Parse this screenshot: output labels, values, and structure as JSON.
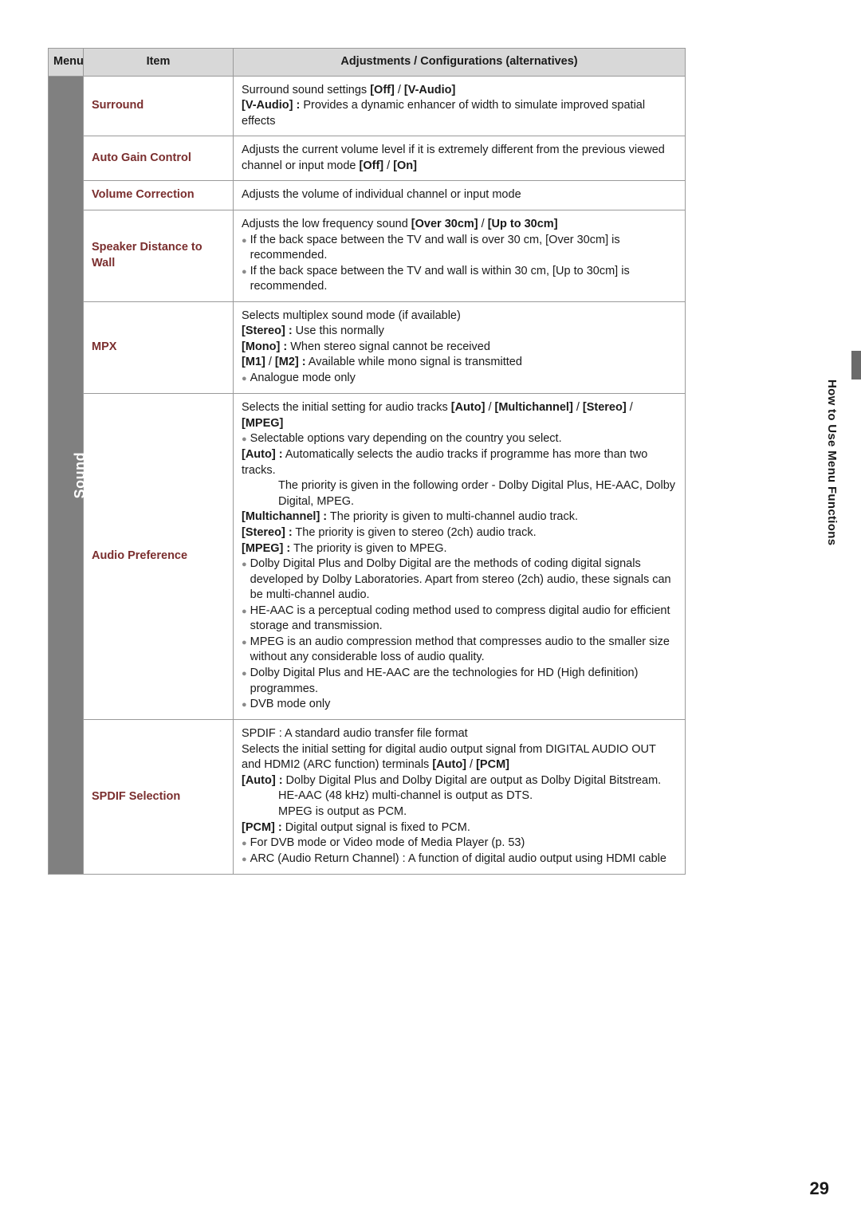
{
  "colors": {
    "header_bg": "#d8d8d8",
    "menu_bg": "#808080",
    "menu_fg": "#ffffff",
    "item_fg": "#7a2e2e",
    "text": "#1a1a1a",
    "bullet": "#8a8a8a",
    "border": "#9a9a9a",
    "side_tab": "#6a6a6a"
  },
  "typography": {
    "base_fontsize": 14.5,
    "header_fontsize": 15,
    "item_fontsize": 14,
    "menu_fontsize": 18,
    "side_fontsize": 15,
    "page_num_fontsize": 22
  },
  "header": {
    "menu": "Menu",
    "item": "Item",
    "desc": "Adjustments / Configurations (alternatives)"
  },
  "menu_label": "Sound",
  "side_label": "How to Use Menu Functions",
  "page_number": "29",
  "rows": [
    {
      "item": "Surround",
      "desc": [
        {
          "type": "line",
          "parts": [
            {
              "text": "Surround sound settings "
            },
            {
              "text": "[Off]",
              "bold": true
            },
            {
              "text": " / "
            },
            {
              "text": "[V-Audio]",
              "bold": true
            }
          ]
        },
        {
          "type": "line",
          "parts": [
            {
              "text": "[V-Audio] :",
              "bold": true
            },
            {
              "text": " Provides a dynamic enhancer of width to simulate improved spatial effects"
            }
          ]
        }
      ]
    },
    {
      "item": "Auto Gain Control",
      "desc": [
        {
          "type": "line",
          "parts": [
            {
              "text": "Adjusts the current volume level if it is extremely different from the previous viewed channel or input mode "
            },
            {
              "text": "[Off]",
              "bold": true
            },
            {
              "text": " / "
            },
            {
              "text": "[On]",
              "bold": true
            }
          ]
        }
      ]
    },
    {
      "item": "Volume Correction",
      "desc": [
        {
          "type": "line",
          "parts": [
            {
              "text": "Adjusts the volume of individual channel or input mode"
            }
          ]
        }
      ]
    },
    {
      "item": "Speaker Distance to Wall",
      "desc": [
        {
          "type": "line",
          "parts": [
            {
              "text": "Adjusts the low frequency sound "
            },
            {
              "text": "[Over 30cm]",
              "bold": true
            },
            {
              "text": " / "
            },
            {
              "text": "[Up to 30cm]",
              "bold": true
            }
          ]
        },
        {
          "type": "bullet",
          "parts": [
            {
              "text": "If the back space between the TV and wall is over 30 cm, [Over 30cm] is recommended."
            }
          ]
        },
        {
          "type": "bullet",
          "parts": [
            {
              "text": "If the back space between the TV and wall is within 30 cm, [Up to 30cm] is recommended."
            }
          ]
        }
      ]
    },
    {
      "item": "MPX",
      "desc": [
        {
          "type": "line",
          "parts": [
            {
              "text": "Selects multiplex sound mode (if available)"
            }
          ]
        },
        {
          "type": "line",
          "parts": [
            {
              "text": "[Stereo] :",
              "bold": true
            },
            {
              "text": " Use this normally"
            }
          ]
        },
        {
          "type": "line",
          "parts": [
            {
              "text": "[Mono] :",
              "bold": true
            },
            {
              "text": " When stereo signal cannot be received"
            }
          ]
        },
        {
          "type": "line",
          "parts": [
            {
              "text": "[M1]",
              "bold": true
            },
            {
              "text": " / "
            },
            {
              "text": "[M2] :",
              "bold": true
            },
            {
              "text": " Available while mono signal is transmitted"
            }
          ]
        },
        {
          "type": "bullet",
          "parts": [
            {
              "text": "Analogue mode only"
            }
          ]
        }
      ]
    },
    {
      "item": "Audio Preference",
      "desc": [
        {
          "type": "line",
          "parts": [
            {
              "text": "Selects the initial setting for audio tracks "
            },
            {
              "text": "[Auto]",
              "bold": true
            },
            {
              "text": " / "
            },
            {
              "text": "[Multichannel]",
              "bold": true
            },
            {
              "text": " / "
            },
            {
              "text": "[Stereo]",
              "bold": true
            },
            {
              "text": " / "
            },
            {
              "text": "[MPEG]",
              "bold": true
            }
          ]
        },
        {
          "type": "bullet",
          "parts": [
            {
              "text": "Selectable options vary depending on the country you select."
            }
          ]
        },
        {
          "type": "line",
          "parts": [
            {
              "text": "[Auto] :",
              "bold": true
            },
            {
              "text": " Automatically selects the audio tracks if programme has more than two tracks."
            }
          ]
        },
        {
          "type": "indent",
          "parts": [
            {
              "text": "The priority is given in the following order - Dolby Digital Plus, HE-AAC, Dolby Digital, MPEG."
            }
          ]
        },
        {
          "type": "line",
          "parts": [
            {
              "text": "[Multichannel] :",
              "bold": true
            },
            {
              "text": " The priority is given to multi-channel audio track."
            }
          ]
        },
        {
          "type": "line",
          "parts": [
            {
              "text": "[Stereo] :",
              "bold": true
            },
            {
              "text": " The priority is given to stereo (2ch) audio track."
            }
          ]
        },
        {
          "type": "line",
          "parts": [
            {
              "text": "[MPEG] :",
              "bold": true
            },
            {
              "text": " The priority is given to MPEG."
            }
          ]
        },
        {
          "type": "bullet",
          "parts": [
            {
              "text": "Dolby Digital Plus and Dolby Digital are the methods of coding digital signals developed by Dolby Laboratories. Apart from stereo (2ch) audio, these signals can be multi-channel audio."
            }
          ]
        },
        {
          "type": "bullet",
          "parts": [
            {
              "text": "HE-AAC is a perceptual coding method used to compress digital audio for efficient storage and transmission."
            }
          ]
        },
        {
          "type": "bullet",
          "parts": [
            {
              "text": "MPEG is an audio compression method that compresses audio to the smaller size without any considerable loss of audio quality."
            }
          ]
        },
        {
          "type": "bullet",
          "parts": [
            {
              "text": "Dolby Digital Plus and HE-AAC are the technologies for HD (High definition) programmes."
            }
          ]
        },
        {
          "type": "bullet",
          "parts": [
            {
              "text": "DVB mode only"
            }
          ]
        }
      ]
    },
    {
      "item": "SPDIF Selection",
      "desc": [
        {
          "type": "line",
          "parts": [
            {
              "text": "SPDIF : A standard audio transfer file format"
            }
          ]
        },
        {
          "type": "line",
          "parts": [
            {
              "text": "Selects the initial setting for digital audio output signal from DIGITAL AUDIO OUT and HDMI2 (ARC function) terminals "
            },
            {
              "text": "[Auto]",
              "bold": true
            },
            {
              "text": " / "
            },
            {
              "text": "[PCM]",
              "bold": true
            }
          ]
        },
        {
          "type": "line",
          "parts": [
            {
              "text": "[Auto] :",
              "bold": true
            },
            {
              "text": " Dolby Digital Plus and Dolby Digital are output as Dolby Digital Bitstream."
            }
          ]
        },
        {
          "type": "indent",
          "parts": [
            {
              "text": "HE-AAC (48 kHz) multi-channel is output as DTS."
            }
          ]
        },
        {
          "type": "indent",
          "parts": [
            {
              "text": "MPEG is output as PCM."
            }
          ]
        },
        {
          "type": "line",
          "parts": [
            {
              "text": "[PCM] :",
              "bold": true
            },
            {
              "text": " Digital output signal is fixed to PCM."
            }
          ]
        },
        {
          "type": "bullet",
          "parts": [
            {
              "text": "For DVB mode or Video mode of Media Player (p. 53)"
            }
          ]
        },
        {
          "type": "bullet",
          "parts": [
            {
              "text": "ARC (Audio Return Channel) : A function of digital audio output using HDMI cable"
            }
          ]
        }
      ]
    }
  ]
}
